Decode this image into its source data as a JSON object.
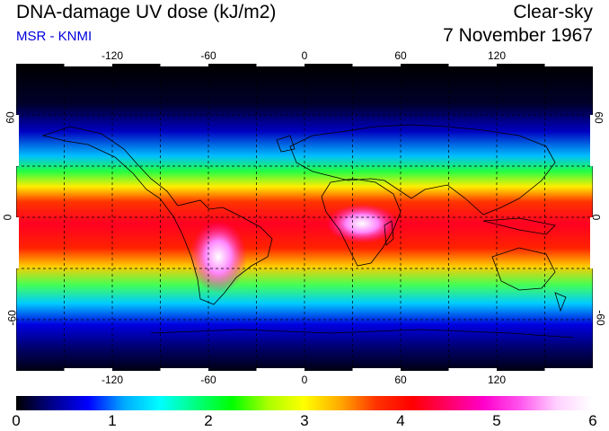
{
  "header": {
    "title": "DNA-damage UV dose (kJ/m2)",
    "subtitle": "MSR - KNMI",
    "sky_condition": "Clear-sky",
    "date": "7 November 1967"
  },
  "map": {
    "lon_ticks": [
      "-120",
      "-60",
      "0",
      "60",
      "120"
    ],
    "lat_ticks": [
      "60",
      "0",
      "-60"
    ],
    "lon_range": [
      -180,
      180
    ],
    "lat_range": [
      -90,
      90
    ]
  },
  "colorbar": {
    "labels": [
      "0",
      "1",
      "2",
      "3",
      "4",
      "5",
      "6"
    ],
    "range": [
      0,
      6
    ],
    "colors": [
      "#000000",
      "#00008b",
      "#0000ff",
      "#00aaff",
      "#00ffff",
      "#00ff7f",
      "#00ff00",
      "#aaff00",
      "#ffff00",
      "#ffaa00",
      "#ff3300",
      "#ff0000",
      "#ff0066",
      "#ff00cc",
      "#ff55ee",
      "#ffd0ff",
      "#ffffff"
    ]
  }
}
